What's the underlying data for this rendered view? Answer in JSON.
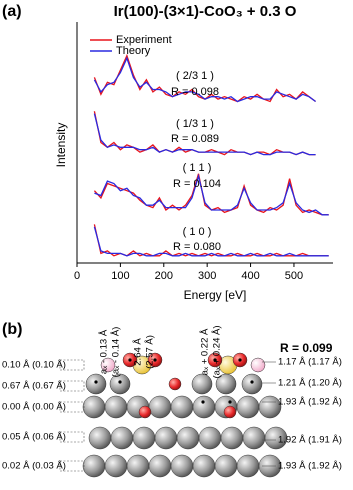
{
  "panel_a_label": "(a)",
  "chart_data": {
    "type": "line",
    "title": "Ir(100)-(3×1)-CoO₃ + 0.3 O",
    "x_label": "Energy [eV]",
    "y_label": "Intensity",
    "xlim": [
      0,
      590
    ],
    "xticks": [
      0,
      100,
      200,
      300,
      400,
      500
    ],
    "ylim": [
      0,
      100
    ],
    "legend": "upper-left",
    "x": [
      40,
      55,
      70,
      85,
      100,
      115,
      130,
      145,
      160,
      175,
      190,
      205,
      220,
      235,
      250,
      265,
      280,
      295,
      310,
      325,
      340,
      355,
      370,
      385,
      400,
      415,
      430,
      445,
      460,
      475,
      490,
      505,
      520,
      535,
      550,
      565,
      580
    ],
    "series": [
      {
        "name": "Experiment",
        "color": "#e8141c",
        "values": [
          77,
          70,
          75,
          74,
          80,
          86,
          78,
          72,
          76,
          71,
          73,
          70,
          69,
          71,
          70,
          72,
          69,
          68,
          70,
          68,
          69,
          68,
          67,
          69,
          68,
          70,
          68,
          67,
          72,
          69,
          70,
          68,
          71,
          69,
          67,
          null,
          null
        ]
      },
      {
        "name": "Theory",
        "color": "#2a2ae0",
        "values": [
          76,
          71,
          74,
          75,
          79,
          85,
          77,
          73,
          75,
          72,
          72,
          71,
          69,
          70,
          71,
          71,
          70,
          68,
          69,
          69,
          68,
          69,
          67,
          68,
          69,
          69,
          68,
          68,
          71,
          70,
          69,
          68,
          70,
          69,
          67,
          null,
          null
        ]
      },
      {
        "name": "Experiment",
        "color": "#e8141c",
        "values": [
          63,
          50,
          48,
          50,
          47,
          49,
          48,
          46,
          47,
          49,
          46,
          47,
          46,
          48,
          46,
          47,
          46,
          46,
          47,
          46,
          45,
          47,
          46,
          46,
          45,
          46,
          46,
          45,
          47,
          46,
          46,
          45,
          46,
          45,
          45,
          null,
          null
        ]
      },
      {
        "name": "Theory",
        "color": "#2a2ae0",
        "values": [
          62,
          51,
          48,
          49,
          48,
          48,
          48,
          47,
          47,
          48,
          46,
          47,
          46,
          47,
          47,
          47,
          46,
          46,
          46,
          46,
          46,
          46,
          46,
          46,
          45,
          46,
          45,
          45,
          46,
          46,
          46,
          45,
          46,
          45,
          45,
          null,
          null
        ]
      },
      {
        "name": "Experiment",
        "color": "#e8141c",
        "values": [
          30,
          27,
          33,
          32,
          31,
          30,
          29,
          26,
          24,
          23,
          27,
          22,
          24,
          22,
          24,
          28,
          37,
          24,
          22,
          23,
          21,
          22,
          23,
          32,
          24,
          22,
          21,
          23,
          22,
          24,
          35,
          24,
          21,
          22,
          21,
          20,
          20
        ]
      },
      {
        "name": "Theory",
        "color": "#2a2ae0",
        "values": [
          29,
          28,
          34,
          33,
          30,
          31,
          28,
          27,
          24,
          24,
          26,
          23,
          23,
          23,
          23,
          27,
          36,
          25,
          22,
          22,
          22,
          22,
          24,
          31,
          25,
          22,
          22,
          22,
          23,
          25,
          33,
          25,
          22,
          21,
          22,
          20,
          20
        ]
      },
      {
        "name": "Experiment",
        "color": "#e8141c",
        "values": [
          16,
          4,
          5,
          3,
          4,
          3,
          5,
          3,
          4,
          3,
          3,
          5,
          3,
          4,
          3,
          4,
          3,
          4,
          3,
          4,
          3,
          3,
          4,
          3,
          3,
          4,
          3,
          3,
          4,
          3,
          3,
          3,
          4,
          3,
          3,
          3,
          3
        ]
      },
      {
        "name": "Theory",
        "color": "#2a2ae0",
        "values": [
          15,
          5,
          4,
          4,
          4,
          3,
          4,
          4,
          3,
          3,
          4,
          4,
          3,
          3,
          4,
          3,
          3,
          3,
          4,
          3,
          3,
          4,
          3,
          3,
          4,
          3,
          3,
          4,
          3,
          3,
          4,
          3,
          3,
          3,
          3,
          3,
          3
        ]
      }
    ],
    "annotations": [
      "( 2/3 1 )",
      "R = 0.098",
      "( 1/3 1 )",
      "R = 0.089",
      "( 1 1 )",
      "R = 0.104",
      "( 1 0 )",
      "R = 0.080"
    ]
  },
  "panel_b": {
    "label": "(b)",
    "r_factor": "R = 0.099",
    "left_labels": [
      "0.10 Å (0.10 Å)",
      "0.67 Å (0.67 Å)",
      "0.00 Å (0.00 Å)",
      "0.05 Å (0.06 Å)",
      "0.02 Å (0.03 Å)"
    ],
    "right_labels": [
      "1.17 Å (1.17 Å)",
      "1.21 Å (1.20 Å)",
      "1.93 Å (1.92 Å)",
      "1.92 Å (1.91 Å)",
      "1.93 Å (1.92 Å)"
    ],
    "distance_labels": [
      "aₓ - 0.13 Å",
      "(aₓ - 0.14 Å)",
      "2.64 Å",
      "(2.57 Å)",
      "aₓ + 0.22 Å",
      "(aₓ + 0.24 Å)"
    ]
  }
}
